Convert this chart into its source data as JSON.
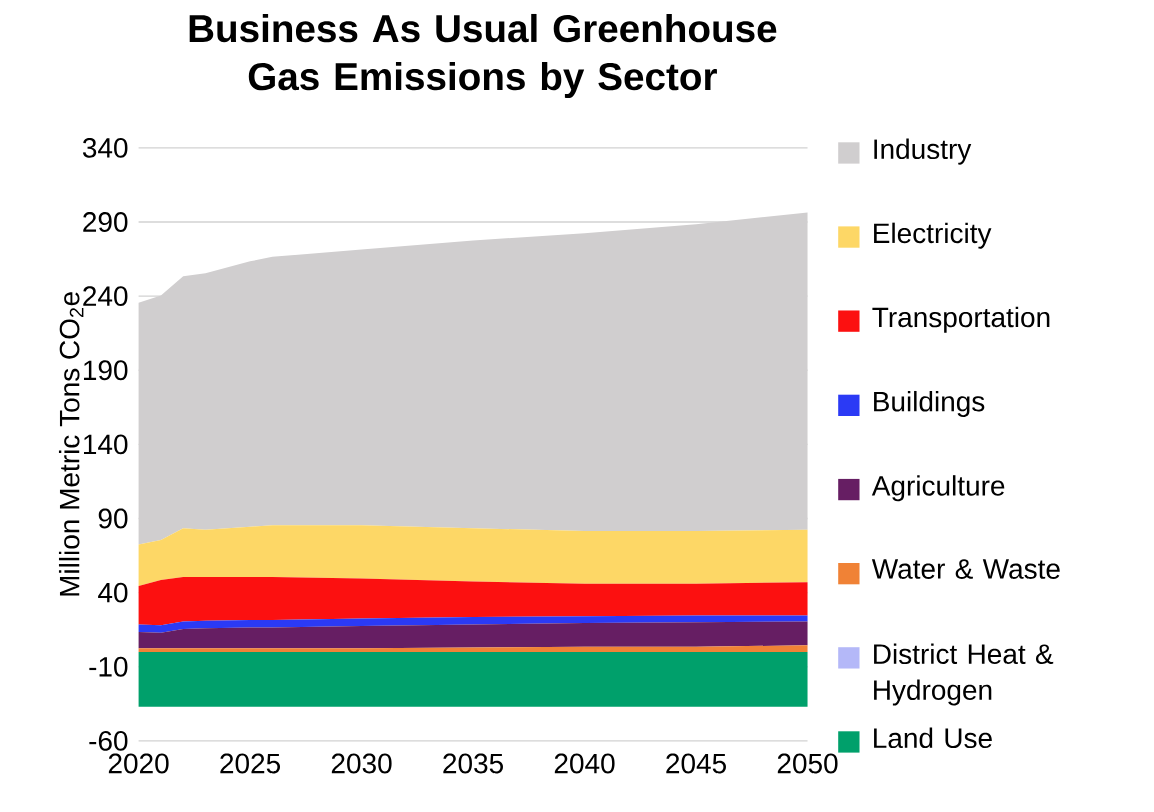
{
  "chart_data": {
    "type": "area",
    "stacked": true,
    "title": "Business As Usual Greenhouse Gas Emissions by Sector",
    "ylabel": "Million Metric Tons CO$_{2}$e",
    "x": [
      2020,
      2021,
      2022,
      2023,
      2025,
      2026,
      2030,
      2035,
      2040,
      2045,
      2050
    ],
    "series": [
      {
        "name": "District Heat & Hydrogen",
        "color": "#b4b8f8",
        "values": [
          null,
          null,
          null,
          null,
          null,
          null,
          null,
          null,
          null,
          null,
          null
        ]
      },
      {
        "name": "Water & Waste",
        "color": "#f08236",
        "values": [
          2.5,
          2.5,
          2.5,
          2.5,
          2.5,
          2.5,
          2.5,
          3,
          3.5,
          3.5,
          4.5
        ]
      },
      {
        "name": "Agriculture",
        "color": "#661e63",
        "values": [
          11,
          10.5,
          13,
          13.5,
          14,
          14,
          15,
          15.5,
          16,
          16.5,
          16
        ]
      },
      {
        "name": "Buildings",
        "color": "#2b3af5",
        "values": [
          5,
          5,
          5,
          5,
          5,
          5,
          5,
          5,
          4.5,
          4.5,
          4
        ]
      },
      {
        "name": "Transportation",
        "color": "#fc1010",
        "values": [
          26,
          30.5,
          30,
          29.5,
          29,
          29,
          27,
          24,
          22,
          21.5,
          22.5
        ]
      },
      {
        "name": "Electricity",
        "color": "#fdd766",
        "values": [
          28,
          27,
          33,
          32,
          34,
          35,
          36,
          36,
          35.5,
          35.5,
          35.5
        ]
      },
      {
        "name": "Industry",
        "color": "#d0cecf",
        "values": [
          163,
          165,
          170,
          173,
          179,
          181,
          186,
          194,
          201,
          207,
          214
        ]
      }
    ],
    "bands": [
      {
        "axis": "y",
        "from": -37,
        "to": 0,
        "label": "Land Use",
        "color": "#00a06b"
      }
    ],
    "xlim": [
      2020,
      2050
    ],
    "xticks": [
      2020,
      2025,
      2030,
      2035,
      2040,
      2045,
      2050
    ],
    "ylim": [
      -60,
      340
    ],
    "yticks": [
      -60,
      -10,
      40,
      90,
      140,
      190,
      240,
      290,
      340
    ],
    "grid": "y",
    "legend": "right"
  }
}
